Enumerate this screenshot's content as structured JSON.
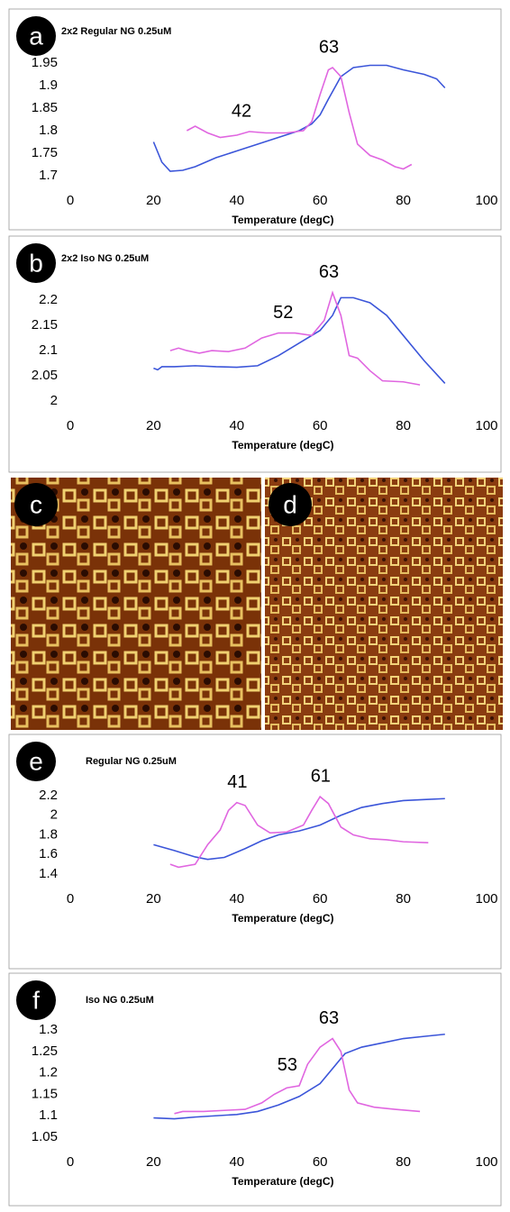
{
  "chart_data": [
    {
      "type": "line",
      "panel": "a",
      "title": "2x2 Regular NG 0.25uM",
      "xlabel": "Temperature (degC)",
      "xlim": [
        0,
        100
      ],
      "xticks": [
        0,
        20,
        40,
        60,
        80,
        100
      ],
      "ylim": [
        1.7,
        1.95
      ],
      "yticks": [
        1.7,
        1.75,
        1.8,
        1.85,
        1.9,
        1.95
      ],
      "annotations": [
        42,
        63
      ],
      "series": [
        {
          "color": "#3b55d9",
          "x": [
            20,
            22,
            24,
            27,
            30,
            35,
            40,
            45,
            50,
            55,
            58,
            60,
            62,
            65,
            68,
            72,
            76,
            80,
            85,
            88,
            90
          ],
          "values": [
            1.775,
            1.73,
            1.71,
            1.712,
            1.72,
            1.74,
            1.755,
            1.77,
            1.785,
            1.8,
            1.815,
            1.835,
            1.87,
            1.92,
            1.94,
            1.945,
            1.945,
            1.935,
            1.925,
            1.915,
            1.895
          ]
        },
        {
          "color": "#e066e0",
          "x": [
            28,
            30,
            33,
            36,
            40,
            43,
            47,
            52,
            56,
            58,
            60,
            62,
            63,
            65,
            67,
            69,
            72,
            75,
            78,
            80,
            82
          ],
          "values": [
            1.8,
            1.81,
            1.795,
            1.785,
            1.79,
            1.798,
            1.795,
            1.795,
            1.8,
            1.82,
            1.88,
            1.935,
            1.94,
            1.92,
            1.84,
            1.77,
            1.745,
            1.735,
            1.72,
            1.715,
            1.725
          ]
        }
      ]
    },
    {
      "type": "line",
      "panel": "b",
      "title": "2x2 Iso NG 0.25uM",
      "xlabel": "Temperature (degC)",
      "xlim": [
        0,
        100
      ],
      "xticks": [
        0,
        20,
        40,
        60,
        80,
        100
      ],
      "ylim": [
        2,
        2.22
      ],
      "yticks": [
        2,
        2.05,
        2.1,
        2.15,
        2.2
      ],
      "annotations": [
        52,
        63
      ],
      "series": [
        {
          "color": "#3b55d9",
          "x": [
            20,
            21,
            22,
            25,
            30,
            35,
            40,
            45,
            50,
            55,
            60,
            63,
            65,
            68,
            72,
            76,
            80,
            85,
            90
          ],
          "values": [
            2.065,
            2.062,
            2.068,
            2.068,
            2.07,
            2.068,
            2.067,
            2.07,
            2.09,
            2.115,
            2.14,
            2.17,
            2.205,
            2.205,
            2.195,
            2.17,
            2.13,
            2.08,
            2.035
          ]
        },
        {
          "color": "#e066e0",
          "x": [
            24,
            26,
            28,
            31,
            34,
            38,
            42,
            46,
            50,
            54,
            58,
            61,
            63,
            65,
            67,
            69,
            72,
            75,
            80,
            84
          ],
          "values": [
            2.1,
            2.105,
            2.1,
            2.095,
            2.1,
            2.098,
            2.105,
            2.125,
            2.135,
            2.135,
            2.13,
            2.16,
            2.215,
            2.17,
            2.09,
            2.085,
            2.06,
            2.04,
            2.038,
            2.032
          ]
        }
      ]
    },
    {
      "type": "line",
      "panel": "e",
      "title": "Regular NG 0.25uM",
      "xlabel": "Temperature (degC)",
      "xlim": [
        0,
        100
      ],
      "xticks": [
        0,
        20,
        40,
        60,
        80,
        100
      ],
      "ylim": [
        1.4,
        2.2
      ],
      "yticks": [
        1.4,
        1.6,
        1.8,
        2,
        2.2
      ],
      "annotations": [
        41,
        61
      ],
      "series": [
        {
          "color": "#3b55d9",
          "x": [
            20,
            25,
            30,
            33,
            37,
            42,
            46,
            50,
            55,
            60,
            65,
            70,
            75,
            80,
            85,
            90
          ],
          "values": [
            1.7,
            1.64,
            1.575,
            1.55,
            1.57,
            1.66,
            1.74,
            1.8,
            1.84,
            1.9,
            2.0,
            2.08,
            2.12,
            2.15,
            2.16,
            2.17
          ]
        },
        {
          "color": "#e066e0",
          "x": [
            24,
            26,
            30,
            33,
            36,
            38,
            40,
            42,
            45,
            48,
            52,
            56,
            58,
            60,
            62,
            65,
            68,
            72,
            76,
            80,
            86
          ],
          "values": [
            1.5,
            1.47,
            1.5,
            1.7,
            1.85,
            2.05,
            2.13,
            2.1,
            1.9,
            1.82,
            1.83,
            1.9,
            2.05,
            2.19,
            2.12,
            1.88,
            1.8,
            1.76,
            1.75,
            1.73,
            1.72
          ]
        }
      ]
    },
    {
      "type": "line",
      "panel": "f",
      "title": "Iso NG 0.25uM",
      "xlabel": "Temperature (degC)",
      "xlim": [
        0,
        100
      ],
      "xticks": [
        0,
        20,
        40,
        60,
        80,
        100
      ],
      "ylim": [
        1.05,
        1.3
      ],
      "yticks": [
        1.05,
        1.1,
        1.15,
        1.2,
        1.25,
        1.3
      ],
      "annotations": [
        53,
        63
      ],
      "series": [
        {
          "color": "#3b55d9",
          "x": [
            20,
            25,
            30,
            40,
            45,
            50,
            55,
            60,
            63,
            66,
            70,
            75,
            80,
            85,
            90
          ],
          "values": [
            1.095,
            1.093,
            1.097,
            1.103,
            1.11,
            1.125,
            1.145,
            1.175,
            1.21,
            1.245,
            1.26,
            1.27,
            1.28,
            1.285,
            1.29
          ]
        },
        {
          "color": "#e066e0",
          "x": [
            25,
            27,
            32,
            38,
            42,
            46,
            49,
            52,
            55,
            57,
            60,
            63,
            65,
            67,
            69,
            73,
            78,
            84
          ],
          "values": [
            1.105,
            1.11,
            1.11,
            1.113,
            1.115,
            1.13,
            1.15,
            1.165,
            1.17,
            1.22,
            1.26,
            1.28,
            1.25,
            1.16,
            1.13,
            1.12,
            1.115,
            1.11
          ]
        }
      ]
    }
  ],
  "images": [
    {
      "label": "c"
    },
    {
      "label": "d"
    }
  ]
}
